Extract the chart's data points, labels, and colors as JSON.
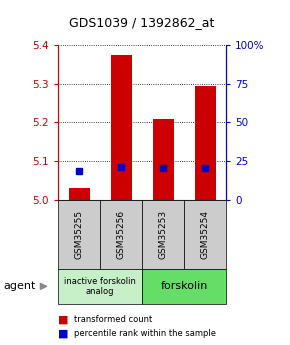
{
  "title": "GDS1039 / 1392862_at",
  "samples": [
    "GSM35255",
    "GSM35256",
    "GSM35253",
    "GSM35254"
  ],
  "red_values": [
    5.03,
    5.375,
    5.21,
    5.295
  ],
  "blue_values": [
    5.075,
    5.085,
    5.082,
    5.082
  ],
  "y_min": 5.0,
  "y_max": 5.4,
  "y_ticks_left": [
    5.0,
    5.1,
    5.2,
    5.3,
    5.4
  ],
  "y_ticks_right": [
    0,
    25,
    50,
    75,
    100
  ],
  "groups": [
    {
      "label": "inactive forskolin\nanalog",
      "color": "#c8f0c8",
      "samples": [
        0,
        1
      ]
    },
    {
      "label": "forskolin",
      "color": "#66dd66",
      "samples": [
        2,
        3
      ]
    }
  ],
  "legend_red": "transformed count",
  "legend_blue": "percentile rank within the sample",
  "agent_label": "agent",
  "bar_color_red": "#cc0000",
  "bar_color_blue": "#0000cc",
  "left_axis_color": "#cc0000",
  "right_axis_color": "#0000cc",
  "bar_width": 0.5
}
